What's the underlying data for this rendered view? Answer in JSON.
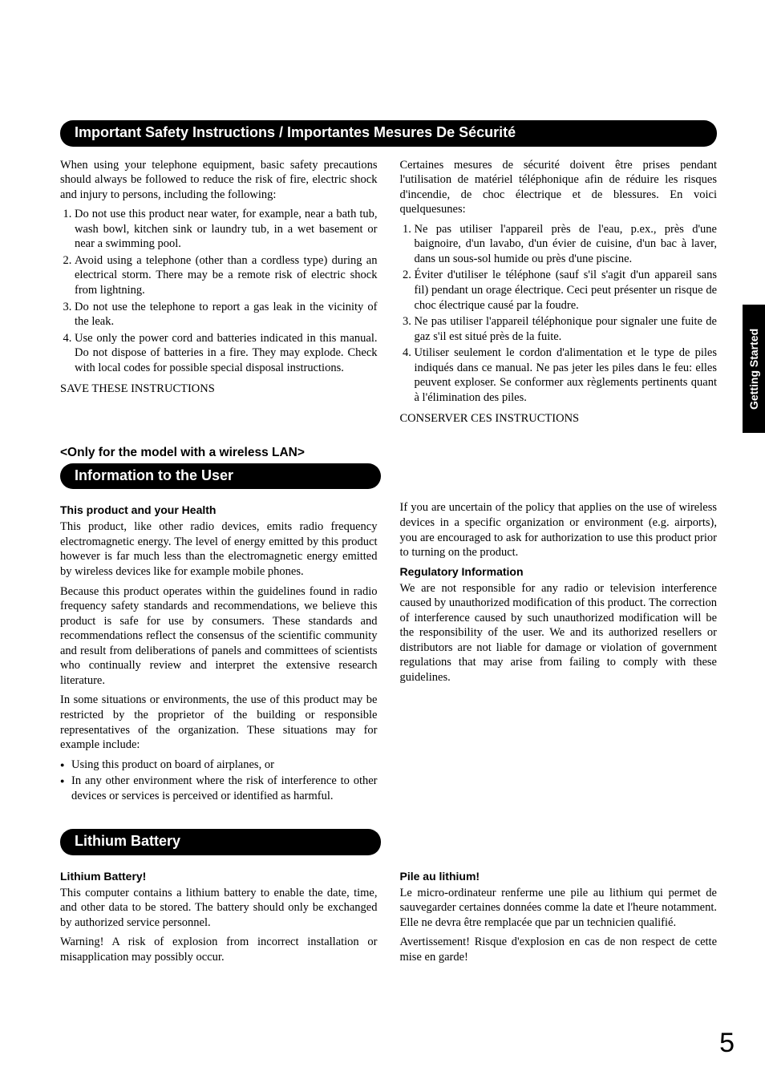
{
  "sideTab": "Getting Started",
  "pageNumber": "5",
  "section1": {
    "title": "Important Safety Instructions / Importantes Mesures De Sécurité",
    "left": {
      "intro": "When using your telephone equipment, basic safety precautions should always be followed to reduce the risk of fire, electric shock and injury to persons, including the following:",
      "items": [
        "Do not use this product near water, for example, near a bath tub, wash bowl, kitchen sink or laundry tub, in a wet basement or near a swimming pool.",
        "Avoid using a telephone (other than a cordless type) during an electrical storm. There may be a remote risk of electric shock from lightning.",
        "Do not use the telephone to report a gas leak in the vicinity of the leak.",
        "Use only the power cord and batteries indicated in this manual. Do not dispose of  batteries in a fire. They may explode. Check with local codes for possible special disposal instructions."
      ],
      "save": "SAVE THESE INSTRUCTIONS"
    },
    "right": {
      "intro": "Certaines mesures de sécurité doivent être prises pendant l'utilisation de matériel téléphonique afin de réduire les risques d'incendie, de choc électrique et de blessures. En voici quelquesunes:",
      "items": [
        "Ne pas utiliser l'appareil près de l'eau, p.ex., près d'une baignoire, d'un lavabo, d'un évier de cuisine, d'un bac à laver, dans un sous-sol humide ou près d'une piscine.",
        "Éviter d'utiliser le téléphone (sauf s'il s'agit d'un appareil sans fil) pendant un orage électrique. Ceci peut présenter un risque de choc électrique causé par la foudre.",
        "Ne pas utiliser l'appareil téléphonique pour signaler une fuite de gaz s'il est situé près de la fuite.",
        "Utiliser seulement le cordon d'alimentation et le type de piles indiqués dans ce manual. Ne pas jeter les piles dans le feu: elles peuvent exploser. Se conformer aux règlements pertinents quant à l'élimination des piles."
      ],
      "save": "CONSERVER CES INSTRUCTIONS"
    }
  },
  "section2": {
    "note": "<Only for the model with a wireless LAN>",
    "title": "Information to the User",
    "left": {
      "h1": "This product and your Health",
      "p1": "This product, like other radio devices, emits radio frequency electromagnetic energy. The level of energy emitted by this product however is far much less than the electromagnetic energy emitted by wireless devices like for example mobile phones.",
      "p2": "Because this product operates within the guidelines found in radio frequency safety standards and recommendations, we believe this product is safe for use by consumers. These standards and recommendations reflect the consensus of the scientific community and result from deliberations of panels and committees of scientists who continually review and interpret the extensive research literature.",
      "p3": "In some situations or environments, the use of this product may be restricted by the proprietor of the building or responsible representatives of the organization. These situations may for example include:",
      "bullets": [
        "Using this product on board of airplanes, or",
        "In any other environment where the risk of interference to other devices or services is perceived or identified as harmful."
      ]
    },
    "right": {
      "p1": "If you are uncertain of the policy that applies on the use of wireless devices in a specific organization or environment (e.g. airports), you are encouraged to ask for authorization to use this product prior to turning on the product.",
      "h1": "Regulatory Information",
      "p2": "We are not responsible for any radio or television interference caused by unauthorized modification of this product. The correction of interference caused by such unauthorized modification will be the responsibility of the user. We and its authorized resellers or distributors are not liable for damage or violation of government regulations that may arise from failing to comply with these guidelines."
    }
  },
  "section3": {
    "title": "Lithium Battery",
    "left": {
      "h1": "Lithium Battery!",
      "p1": "This computer contains a lithium battery to enable the date, time, and other data to be stored. The battery should only be exchanged by authorized service personnel.",
      "p2": "Warning! A risk of explosion from incorrect installation or misapplication may possibly occur."
    },
    "right": {
      "h1": "Pile au lithium!",
      "p1": "Le micro-ordinateur renferme une pile au lithium qui permet de sauvegarder certaines données comme la date et l'heure notamment. Elle ne devra être remplacée que par un technicien qualifié.",
      "p2": "Avertissement! Risque d'explosion en cas de non respect de cette mise en garde!"
    }
  }
}
